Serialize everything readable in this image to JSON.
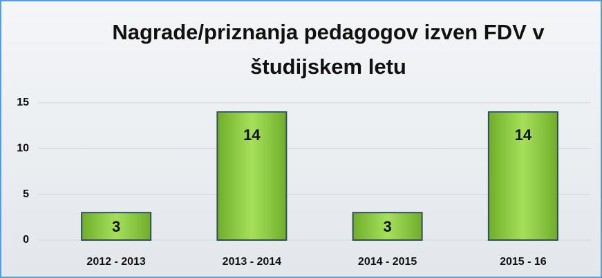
{
  "chart_data": {
    "type": "bar",
    "title": "Nagrade/priznanja pedagogov izven FDV v študijskem letu",
    "categories": [
      "2012 - 2013",
      "2013 - 2014",
      "2014 - 2015",
      "2015 - 16"
    ],
    "values": [
      3,
      14,
      3,
      14
    ],
    "color": "#8fd13f",
    "ylim": [
      0,
      15
    ],
    "yticks": [
      0,
      5,
      10,
      15
    ],
    "grid": true
  }
}
